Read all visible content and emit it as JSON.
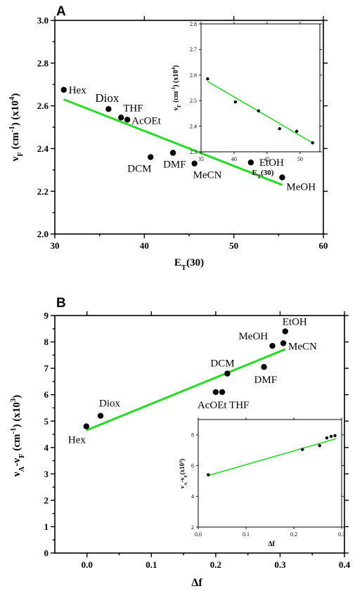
{
  "chart_data": [
    {
      "panel": "A",
      "type": "scatter",
      "xlabel": "E",
      "xlabel_sub": "T",
      "xlabel_suffix": "(30)",
      "ylabel": "ν",
      "ylabel_sub": "F",
      "ylabel_suffix": " (cm",
      "ylabel_exp": "-1",
      "ylabel_unit": ") (x10",
      "ylabel_unit_exp": "4",
      "ylabel_close": ")",
      "xlim": [
        30,
        60
      ],
      "ylim": [
        2.0,
        3.0
      ],
      "xticks": [
        30,
        40,
        50,
        60
      ],
      "yticks": [
        2.0,
        2.2,
        2.4,
        2.6,
        2.8,
        3.0
      ],
      "xtick_labels": [
        "30",
        "40",
        "50",
        "60"
      ],
      "ytick_labels": [
        "2.0",
        "2.2",
        "2.4",
        "2.6",
        "2.8",
        "3.0"
      ],
      "line_color": "#22dd22",
      "points": [
        {
          "label": "Hex",
          "x": 31.0,
          "y": 2.675
        },
        {
          "label": "Diox",
          "x": 36.0,
          "y": 2.585
        },
        {
          "label": "THF",
          "x": 37.4,
          "y": 2.545
        },
        {
          "label": "AcOEt",
          "x": 38.1,
          "y": 2.535
        },
        {
          "label": "DCM",
          "x": 40.7,
          "y": 2.36
        },
        {
          "label": "DMF",
          "x": 43.2,
          "y": 2.38
        },
        {
          "label": "MeCN",
          "x": 45.6,
          "y": 2.33
        },
        {
          "label": "EtOH",
          "x": 51.9,
          "y": 2.335
        },
        {
          "label": "MeOH",
          "x": 55.4,
          "y": 2.265
        }
      ],
      "fit_line": {
        "x": [
          31.0,
          55.4
        ],
        "y": [
          2.63,
          2.23
        ]
      },
      "inset": {
        "type": "scatter",
        "xlabel": "E",
        "xlabel_sub": "T",
        "xlabel_suffix": "(30)",
        "ylabel": "ν",
        "ylabel_sub": "F",
        "ylabel_suffix": " (cm",
        "ylabel_exp": "-1",
        "ylabel_unit": ") (x10",
        "ylabel_unit_exp": "4",
        "ylabel_close": ")",
        "xlim": [
          35,
          53
        ],
        "ylim": [
          2.3,
          2.8
        ],
        "xticks": [
          35,
          40,
          45,
          50
        ],
        "yticks": [
          2.3,
          2.4,
          2.5,
          2.6,
          2.7,
          2.8
        ],
        "xtick_labels": [
          "35",
          "40",
          "45",
          "50"
        ],
        "ytick_labels": [
          "2.3",
          "2.4",
          "2.5",
          "2.6",
          "2.7",
          "2.8"
        ],
        "points": [
          {
            "x": 36.0,
            "y": 2.585
          },
          {
            "x": 40.2,
            "y": 2.495
          },
          {
            "x": 43.7,
            "y": 2.46
          },
          {
            "x": 46.9,
            "y": 2.39
          },
          {
            "x": 49.5,
            "y": 2.38
          },
          {
            "x": 51.9,
            "y": 2.335
          }
        ],
        "fit_line": {
          "x": [
            36.0,
            51.9
          ],
          "y": [
            2.575,
            2.335
          ]
        }
      }
    },
    {
      "panel": "B",
      "type": "scatter",
      "xlabel": "Δf",
      "ylabel": "ν",
      "ylabel_sub": "A",
      "ylabel_mid": "-ν",
      "ylabel_sub2": "F",
      "ylabel_suffix": " (cm",
      "ylabel_exp": "-1",
      "ylabel_unit": ") (x10",
      "ylabel_unit_exp": "3",
      "ylabel_close": ")",
      "xlim": [
        -0.05,
        0.4
      ],
      "ylim": [
        0,
        9
      ],
      "xticks": [
        0.0,
        0.1,
        0.2,
        0.3,
        0.4
      ],
      "yticks": [
        0,
        1,
        2,
        3,
        4,
        5,
        6,
        7,
        8,
        9
      ],
      "xtick_labels": [
        "0.0",
        "0.1",
        "0.2",
        "0.3",
        "0.4"
      ],
      "ytick_labels": [
        "0",
        "1",
        "2",
        "3",
        "4",
        "5",
        "6",
        "7",
        "8",
        "9"
      ],
      "line_color": "#22dd22",
      "points": [
        {
          "label": "Hex",
          "x": -0.001,
          "y": 4.8
        },
        {
          "label": "Diox",
          "x": 0.021,
          "y": 5.2
        },
        {
          "label": "AcOEt",
          "x": 0.2,
          "y": 6.1
        },
        {
          "label": "THF",
          "x": 0.21,
          "y": 6.1
        },
        {
          "label": "DCM",
          "x": 0.218,
          "y": 6.8
        },
        {
          "label": "DMF",
          "x": 0.275,
          "y": 7.05
        },
        {
          "label": "MeOH",
          "x": 0.288,
          "y": 7.85
        },
        {
          "label": "MeCN",
          "x": 0.305,
          "y": 7.95
        },
        {
          "label": "EtOH",
          "x": 0.308,
          "y": 8.4
        }
      ],
      "fit_line": {
        "x": [
          -0.001,
          0.308
        ],
        "y": [
          4.65,
          7.72
        ]
      },
      "inset": {
        "type": "scatter",
        "xlabel": "Δf",
        "ylabel": "ν",
        "ylabel_sub": "A",
        "ylabel_mid": "-ν",
        "ylabel_sub2": "F",
        "ylabel_unit": "(x10",
        "ylabel_unit_exp": "3",
        "ylabel_close": ")",
        "xlim": [
          0,
          0.3
        ],
        "ylim": [
          2,
          9
        ],
        "xticks": [
          0.0,
          0.1,
          0.2,
          0.3
        ],
        "yticks": [
          2,
          4,
          6,
          8
        ],
        "xtick_labels": [
          "0.0",
          "0.1",
          "0.2",
          "0.3"
        ],
        "ytick_labels": [
          "2",
          "4",
          "6",
          "8"
        ],
        "points": [
          {
            "x": 0.021,
            "y": 5.4
          },
          {
            "x": 0.218,
            "y": 7.05
          },
          {
            "x": 0.254,
            "y": 7.3
          },
          {
            "x": 0.269,
            "y": 7.8
          },
          {
            "x": 0.278,
            "y": 7.9
          },
          {
            "x": 0.286,
            "y": 7.95
          }
        ],
        "fit_line": {
          "x": [
            0.021,
            0.288
          ],
          "y": [
            5.35,
            7.75
          ]
        }
      }
    }
  ]
}
